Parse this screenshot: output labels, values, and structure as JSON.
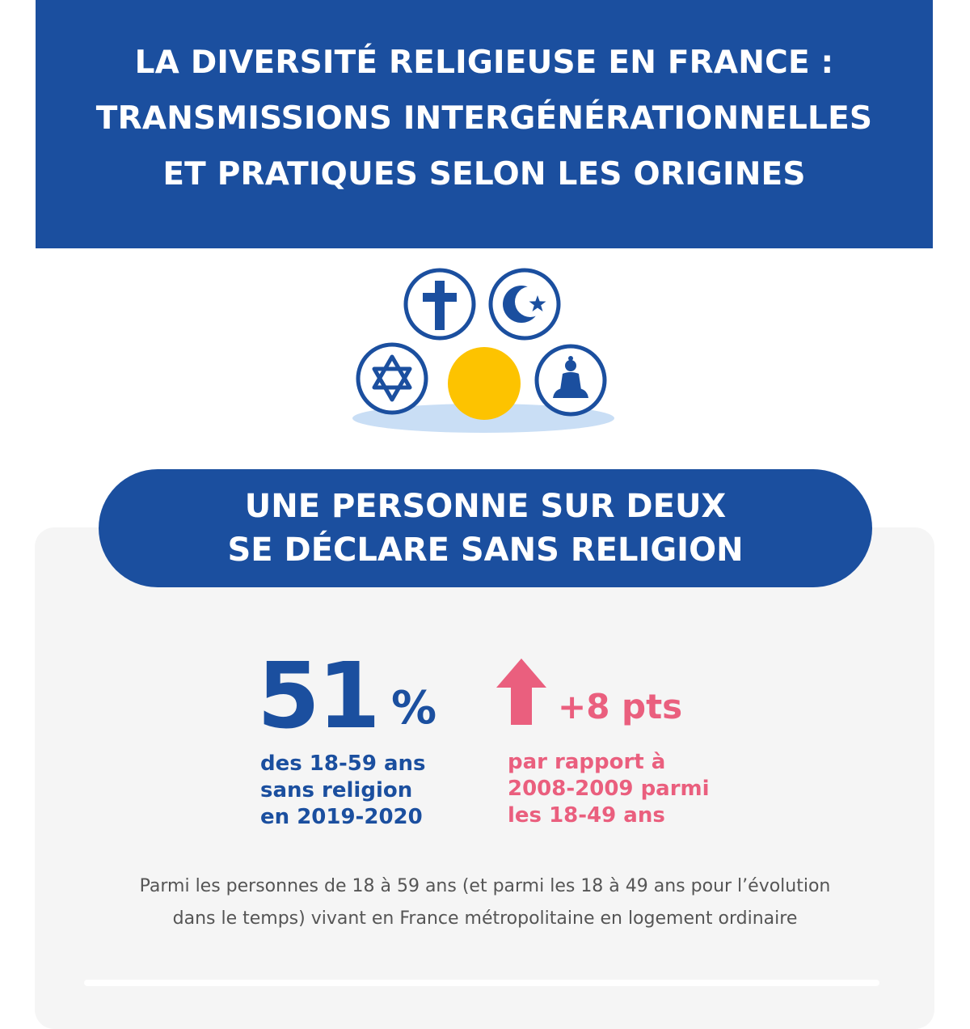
{
  "header": {
    "title_lines": [
      "LA DIVERSITÉ RELIGIEUSE EN FRANCE :",
      "TRANSMISSIONS INTERGÉNÉRATIONNELLES",
      "ET PRATIQUES SELON LES ORIGINES"
    ]
  },
  "icons": [
    "cross-icon",
    "crescent-star-icon",
    "star-of-david-icon",
    "empty-circle-icon",
    "buddha-icon"
  ],
  "headline": {
    "lines": [
      "UNE PERSONNE SUR DEUX",
      "SE DÉCLARE SANS RELIGION"
    ]
  },
  "stat_main": {
    "value": "51",
    "unit": "%",
    "caption_lines": [
      "des 18-59 ans",
      "sans religion",
      "en 2019-2020"
    ]
  },
  "stat_change": {
    "value": "+8 pts",
    "icon": "arrow-up-icon",
    "caption_lines": [
      "par rapport à",
      "2008-2009 parmi",
      "les 18-49 ans"
    ]
  },
  "note": {
    "lines": [
      "Parmi les personnes de 18 à 59 ans (et parmi les 18 à 49 ans pour l’évolution",
      "dans le temps) vivant en France métropolitaine en logement ordinaire"
    ]
  },
  "colors": {
    "blue": "#1b4f9f",
    "pink": "#ea5f7e",
    "yellow": "#fdc300",
    "light_blue": "#c9def5",
    "card_bg": "#f5f5f5"
  }
}
